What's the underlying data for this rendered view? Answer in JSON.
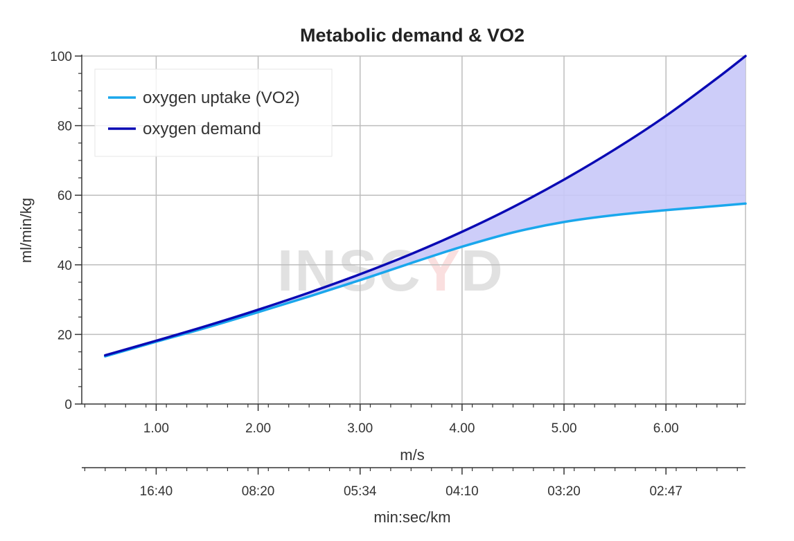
{
  "chart_data": {
    "type": "line",
    "title": "Metabolic demand & VO2",
    "xlabel": "m/s",
    "ylabel": "ml/min/kg",
    "secondary_xlabel": "min:sec/km",
    "xlim": [
      0.27,
      6.78
    ],
    "ylim": [
      0,
      100
    ],
    "grid": true,
    "legend_position": "top-left",
    "x_ticks": [
      1.0,
      2.0,
      3.0,
      4.0,
      5.0,
      6.0
    ],
    "x_tick_labels": [
      "1.00",
      "2.00",
      "3.00",
      "4.00",
      "5.00",
      "6.00"
    ],
    "y_ticks": [
      0,
      20,
      40,
      60,
      80,
      100
    ],
    "y_tick_labels": [
      "0",
      "20",
      "40",
      "60",
      "80",
      "100"
    ],
    "secondary_x_tick_labels": [
      "16:40",
      "08:20",
      "05:34",
      "04:10",
      "03:20",
      "02:47"
    ],
    "x": [
      0.5,
      1.0,
      1.5,
      2.0,
      2.5,
      3.0,
      3.5,
      4.0,
      4.5,
      5.0,
      5.5,
      6.0,
      6.5,
      6.78
    ],
    "series": [
      {
        "name": "oxygen uptake (VO2)",
        "color": "#1aa7ec",
        "values": [
          13.7,
          17.9,
          22.0,
          26.4,
          30.9,
          35.6,
          40.5,
          45.2,
          49.3,
          52.3,
          54.3,
          55.7,
          56.9,
          57.6
        ]
      },
      {
        "name": "oxygen demand",
        "color": "#0a0ab4",
        "values": [
          14.0,
          18.2,
          22.5,
          27.1,
          32.0,
          37.3,
          43.1,
          49.5,
          56.6,
          64.5,
          73.2,
          82.8,
          93.6,
          100.0
        ]
      }
    ],
    "fill_between": {
      "series": [
        "oxygen uptake (VO2)",
        "oxygen demand"
      ],
      "color": "#c8c8f8"
    },
    "watermark": "INSCYD"
  }
}
